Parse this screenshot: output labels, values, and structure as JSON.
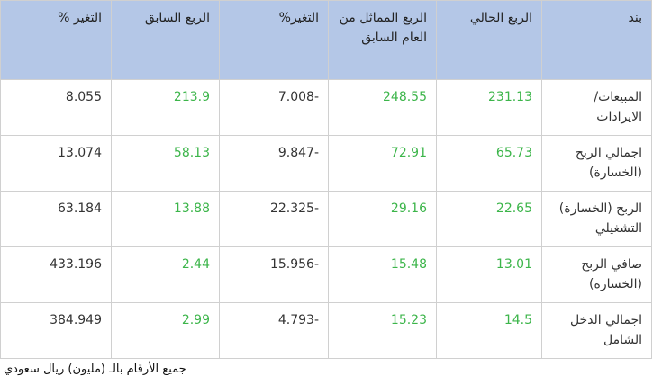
{
  "table": {
    "header": [
      "بند",
      "الربع الحالي",
      "الربع المماثل من العام السابق",
      "التغير%",
      "الربع السابق",
      "التغير %"
    ],
    "rows": [
      [
        "المبيعات/ الايرادات",
        "231.13",
        "248.55",
        "7.008-",
        "213.9",
        "8.055"
      ],
      [
        "اجمالي الربح (الخسارة)",
        "65.73",
        "72.91",
        "9.847-",
        "58.13",
        "13.074"
      ],
      [
        "الربح (الخسارة) التشغيلي",
        "22.65",
        "29.16",
        "22.325-",
        "13.88",
        "63.184"
      ],
      [
        "صافي الربح (الخسارة)",
        "13.01",
        "15.48",
        "15.956-",
        "2.44",
        "433.196"
      ],
      [
        "اجمالي الدخل الشامل",
        "14.5",
        "15.23",
        "4.793-",
        "2.99",
        "384.949"
      ]
    ]
  },
  "footer": "جميع الأرقام بالـ (مليون) ريال سعودي"
}
